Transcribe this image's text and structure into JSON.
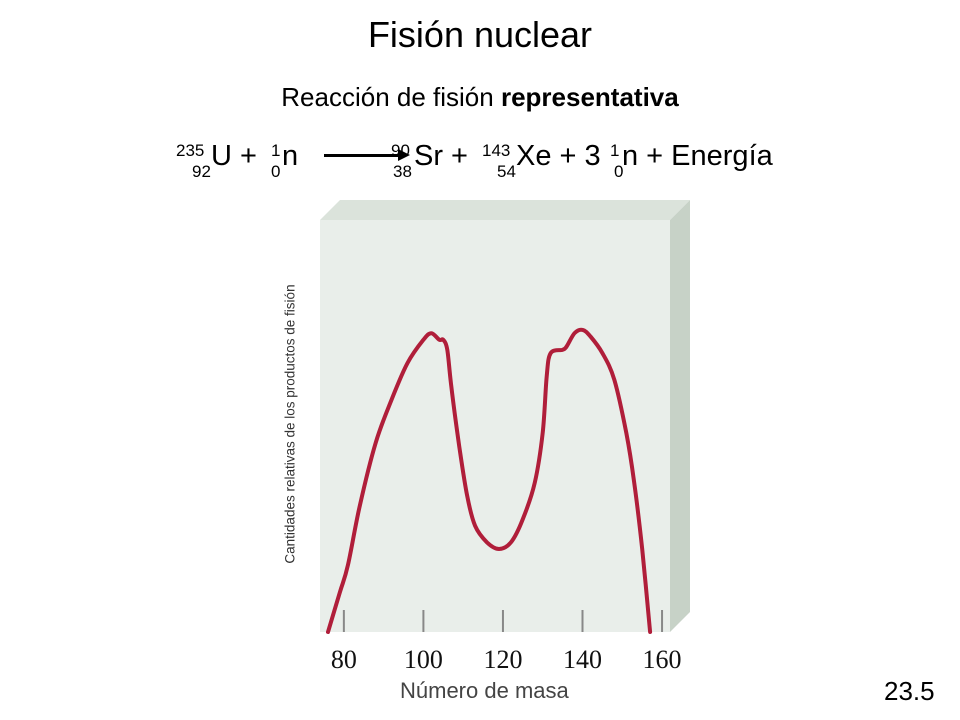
{
  "title": "Fisión nuclear",
  "subtitle": {
    "text": "Reacción de fisión ",
    "bold": "representativa"
  },
  "equation": {
    "u_mass": "235",
    "u_atomic": "92",
    "u_symbol": "U +",
    "n1_mass": "1",
    "n1_atomic": "0",
    "n1_symbol": "n",
    "sr_mass": "90",
    "sr_atomic": "38",
    "sr_symbol": "Sr +",
    "xe_mass": "143",
    "xe_atomic": "54",
    "xe_symbol": "Xe + 3",
    "n3_mass": "1",
    "n3_atomic": "0",
    "n3_symbol": "n + Energía"
  },
  "chart_data": {
    "type": "line",
    "xlabel": "Número de masa",
    "ylabel": "Cantidades relativas de los productos de fisión",
    "x_ticks": [
      80,
      100,
      120,
      140,
      160
    ],
    "xlim": [
      74,
      162
    ],
    "ylim": [
      0,
      1
    ],
    "series": [
      {
        "color": "#b01e3a",
        "points": [
          [
            76,
            0.0
          ],
          [
            79,
            0.12
          ],
          [
            81,
            0.2
          ],
          [
            84,
            0.38
          ],
          [
            88,
            0.57
          ],
          [
            92,
            0.7
          ],
          [
            96,
            0.81
          ],
          [
            100,
            0.88
          ],
          [
            102,
            0.9
          ],
          [
            104,
            0.88
          ],
          [
            105,
            0.88
          ],
          [
            106,
            0.85
          ],
          [
            107,
            0.74
          ],
          [
            109,
            0.56
          ],
          [
            111,
            0.41
          ],
          [
            113,
            0.32
          ],
          [
            116,
            0.27
          ],
          [
            119,
            0.25
          ],
          [
            122,
            0.27
          ],
          [
            125,
            0.34
          ],
          [
            128,
            0.45
          ],
          [
            130,
            0.6
          ],
          [
            131,
            0.77
          ],
          [
            132,
            0.84
          ],
          [
            135,
            0.85
          ],
          [
            136,
            0.86
          ],
          [
            138,
            0.9
          ],
          [
            140,
            0.91
          ],
          [
            142,
            0.89
          ],
          [
            145,
            0.84
          ],
          [
            148,
            0.76
          ],
          [
            151,
            0.6
          ],
          [
            153,
            0.45
          ],
          [
            155,
            0.25
          ],
          [
            157,
            0.0
          ]
        ]
      }
    ]
  },
  "figure_number": "23.5"
}
